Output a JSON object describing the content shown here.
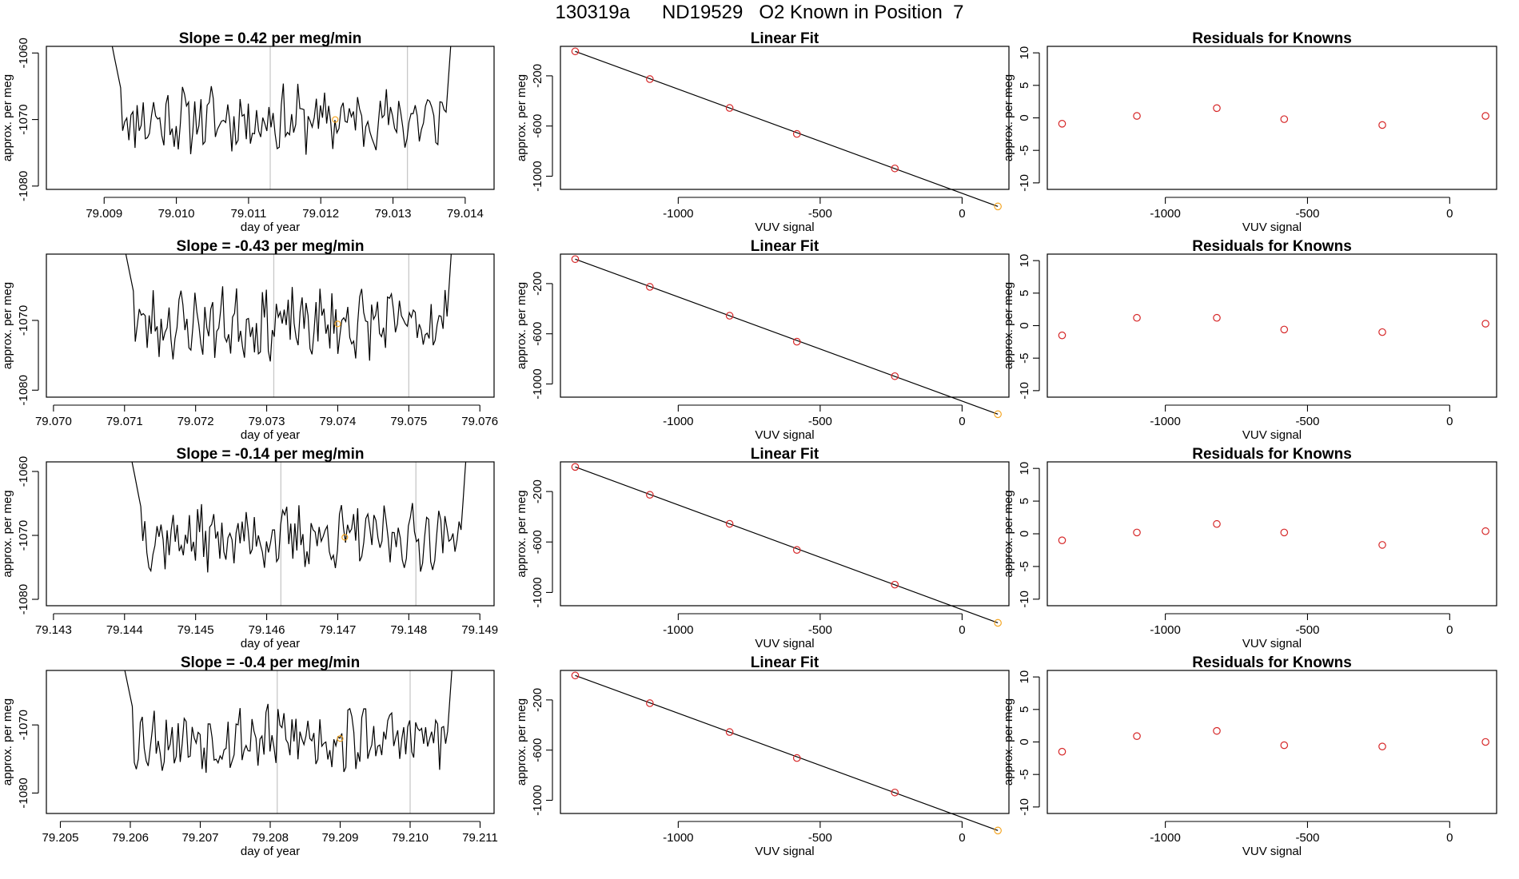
{
  "page_title": "130319a      ND19529   O2 Known in Position  7",
  "colors": {
    "line": "#000000",
    "grid": "#c8c8c8",
    "residual": "#d62728",
    "known": "#f5a623",
    "fit": "#000000"
  },
  "chart_data": [
    {
      "row": 1,
      "type": "line",
      "title": "Slope =  0.42  per meg/min",
      "xlabel": "day of year",
      "ylabel": "approx. per meg",
      "xlim": [
        79.0082,
        79.0144
      ],
      "ylim": [
        -1080.5,
        -1059.0
      ],
      "xticks": [
        79.009,
        79.01,
        79.011,
        79.012,
        79.013,
        79.014
      ],
      "xtick_labels": [
        "79.009",
        "79.010",
        "79.011",
        "79.012",
        "79.013",
        "79.014"
      ],
      "yticks": [
        -1080,
        -1070,
        -1060
      ],
      "ytick_labels": [
        "-1080",
        "-1070",
        "-1060"
      ],
      "vlines": [
        79.0113,
        79.0132
      ],
      "x_start": 79.009,
      "x_end": 79.01385,
      "seed": 11,
      "known_point": {
        "x": 79.0122,
        "y": -1070
      }
    },
    {
      "row": 2,
      "type": "line",
      "title": "Slope =  -0.43  per meg/min",
      "xlabel": "day of year",
      "ylabel": "approx. per meg",
      "xlim": [
        79.0699,
        79.0762
      ],
      "ylim": [
        -1081.0,
        -1060.5
      ],
      "xticks": [
        79.07,
        79.071,
        79.072,
        79.073,
        79.074,
        79.075,
        79.076
      ],
      "xtick_labels": [
        "79.070",
        "79.071",
        "79.072",
        "79.073",
        "79.074",
        "79.075",
        "79.076"
      ],
      "yticks": [
        -1080,
        -1070
      ],
      "ytick_labels": [
        "-1080",
        "-1070"
      ],
      "vlines": [
        79.0731,
        79.075
      ],
      "x_start": 79.0709,
      "x_end": 79.07565,
      "seed": 23,
      "known_point": {
        "x": 79.074,
        "y": -1070.5
      }
    },
    {
      "row": 3,
      "type": "line",
      "title": "Slope =  -0.14  per meg/min",
      "xlabel": "day of year",
      "ylabel": "approx. per meg",
      "xlim": [
        79.1429,
        79.1492
      ],
      "ylim": [
        -1081.0,
        -1058.5
      ],
      "xticks": [
        79.143,
        79.144,
        79.145,
        79.146,
        79.147,
        79.148,
        79.149
      ],
      "xtick_labels": [
        "79.143",
        "79.144",
        "79.145",
        "79.146",
        "79.147",
        "79.148",
        "79.149"
      ],
      "yticks": [
        -1080,
        -1070,
        -1060
      ],
      "ytick_labels": [
        "-1080",
        "-1070",
        "-1060"
      ],
      "vlines": [
        79.1462,
        79.1481
      ],
      "x_start": 79.144,
      "x_end": 79.14885,
      "seed": 37,
      "known_point": {
        "x": 79.1471,
        "y": -1070.3
      }
    },
    {
      "row": 4,
      "type": "line",
      "title": "Slope =  -0.4  per meg/min",
      "xlabel": "day of year",
      "ylabel": "approx. per meg",
      "xlim": [
        79.2048,
        79.2112
      ],
      "ylim": [
        -1083.0,
        -1062.0
      ],
      "xticks": [
        79.205,
        79.206,
        79.207,
        79.208,
        79.209,
        79.21,
        79.211
      ],
      "xtick_labels": [
        "79.205",
        "79.206",
        "79.207",
        "79.208",
        "79.209",
        "79.210",
        "79.211"
      ],
      "yticks": [
        -1080,
        -1070
      ],
      "ytick_labels": [
        "-1080",
        "-1070"
      ],
      "vlines": [
        79.2081,
        79.21
      ],
      "x_start": 79.2058,
      "x_end": 79.21065,
      "seed": 53,
      "known_point": {
        "x": 79.209,
        "y": -1072
      }
    },
    {
      "row": 1,
      "type": "scatter",
      "title": "Linear Fit",
      "xlabel": "VUV signal",
      "ylabel": "approx. per meg",
      "xlim": [
        -1415,
        165
      ],
      "ylim": [
        -1105,
        35
      ],
      "xticks": [
        -1000,
        -500,
        0
      ],
      "xtick_labels": [
        "-1000",
        "-500",
        "0"
      ],
      "yticks": [
        -1000,
        -600,
        -200
      ],
      "ytick_labels": [
        "-1000",
        "-600",
        "-200"
      ],
      "x": [
        -1363,
        -1100,
        -819,
        -582,
        -237,
        126
      ],
      "y": [
        -5,
        -226,
        -456,
        -663,
        -938,
        -1241
      ],
      "fit_line": [
        [
          -1363,
          -5
        ],
        [
          126,
          -1241
        ]
      ]
    },
    {
      "row": 2,
      "type": "scatter",
      "title": "Linear Fit",
      "xlabel": "VUV signal",
      "ylabel": "approx. per meg",
      "xlim": [
        -1415,
        165
      ],
      "ylim": [
        -1105,
        35
      ],
      "xticks": [
        -1000,
        -500,
        0
      ],
      "xtick_labels": [
        "-1000",
        "-500",
        "0"
      ],
      "yticks": [
        -1000,
        -600,
        -200
      ],
      "ytick_labels": [
        "-1000",
        "-600",
        "-200"
      ],
      "x": [
        -1363,
        -1100,
        -819,
        -582,
        -237,
        126
      ],
      "y": [
        -5,
        -226,
        -456,
        -663,
        -938,
        -1241
      ],
      "fit_line": [
        [
          -1363,
          -5
        ],
        [
          126,
          -1241
        ]
      ]
    },
    {
      "row": 3,
      "type": "scatter",
      "title": "Linear Fit",
      "xlabel": "VUV signal",
      "ylabel": "approx. per meg",
      "xlim": [
        -1415,
        165
      ],
      "ylim": [
        -1105,
        35
      ],
      "xticks": [
        -1000,
        -500,
        0
      ],
      "xtick_labels": [
        "-1000",
        "-500",
        "0"
      ],
      "yticks": [
        -1000,
        -600,
        -200
      ],
      "ytick_labels": [
        "-1000",
        "-600",
        "-200"
      ],
      "x": [
        -1363,
        -1100,
        -819,
        -582,
        -237,
        126
      ],
      "y": [
        -5,
        -226,
        -456,
        -663,
        -938,
        -1241
      ],
      "fit_line": [
        [
          -1363,
          -5
        ],
        [
          126,
          -1241
        ]
      ]
    },
    {
      "row": 4,
      "type": "scatter",
      "title": "Linear Fit",
      "xlabel": "VUV signal",
      "ylabel": "approx. per meg",
      "xlim": [
        -1415,
        165
      ],
      "ylim": [
        -1105,
        35
      ],
      "xticks": [
        -1000,
        -500,
        0
      ],
      "xtick_labels": [
        "-1000",
        "-500",
        "0"
      ],
      "yticks": [
        -1000,
        -600,
        -200
      ],
      "ytick_labels": [
        "-1000",
        "-600",
        "-200"
      ],
      "x": [
        -1363,
        -1100,
        -819,
        -582,
        -237,
        126
      ],
      "y": [
        -5,
        -226,
        -456,
        -663,
        -938,
        -1241
      ],
      "fit_line": [
        [
          -1363,
          -5
        ],
        [
          126,
          -1241
        ]
      ]
    },
    {
      "row": 1,
      "type": "scatter",
      "title": "Residuals for Knowns",
      "xlabel": "VUV signal",
      "ylabel": "approx. per meg",
      "xlim": [
        -1415,
        165
      ],
      "ylim": [
        -11,
        11
      ],
      "xticks": [
        -1000,
        -500,
        0
      ],
      "xtick_labels": [
        "-1000",
        "-500",
        "0"
      ],
      "yticks": [
        -10,
        -5,
        0,
        5,
        10
      ],
      "ytick_labels": [
        "-10",
        "-5",
        "0",
        "5",
        "10"
      ],
      "x": [
        -1363,
        -1100,
        -819,
        -582,
        -237,
        126
      ],
      "y": [
        -0.9,
        0.3,
        1.5,
        -0.2,
        -1.1,
        0.3
      ]
    },
    {
      "row": 2,
      "type": "scatter",
      "title": "Residuals for Knowns",
      "xlabel": "VUV signal",
      "ylabel": "approx. per meg",
      "xlim": [
        -1415,
        165
      ],
      "ylim": [
        -11,
        11
      ],
      "xticks": [
        -1000,
        -500,
        0
      ],
      "xtick_labels": [
        "-1000",
        "-500",
        "0"
      ],
      "yticks": [
        -10,
        -5,
        0,
        5,
        10
      ],
      "ytick_labels": [
        "-10",
        "-5",
        "0",
        "5",
        "10"
      ],
      "x": [
        -1363,
        -1100,
        -819,
        -582,
        -237,
        126
      ],
      "y": [
        -1.5,
        1.2,
        1.2,
        -0.6,
        -1.0,
        0.3
      ]
    },
    {
      "row": 3,
      "type": "scatter",
      "title": "Residuals for Knowns",
      "xlabel": "VUV signal",
      "ylabel": "approx. per meg",
      "xlim": [
        -1415,
        165
      ],
      "ylim": [
        -11,
        11
      ],
      "xticks": [
        -1000,
        -500,
        0
      ],
      "xtick_labels": [
        "-1000",
        "-500",
        "0"
      ],
      "yticks": [
        -10,
        -5,
        0,
        5,
        10
      ],
      "ytick_labels": [
        "-10",
        "-5",
        "0",
        "5",
        "10"
      ],
      "x": [
        -1363,
        -1100,
        -819,
        -582,
        -237,
        126
      ],
      "y": [
        -1.0,
        0.2,
        1.5,
        0.2,
        -1.7,
        0.4
      ]
    },
    {
      "row": 4,
      "type": "scatter",
      "title": "Residuals for Knowns",
      "xlabel": "VUV signal",
      "ylabel": "approx. per meg",
      "xlim": [
        -1415,
        165
      ],
      "ylim": [
        -11,
        11
      ],
      "xticks": [
        -1000,
        -500,
        0
      ],
      "xtick_labels": [
        "-1000",
        "-500",
        "0"
      ],
      "yticks": [
        -10,
        -5,
        0,
        5,
        10
      ],
      "ytick_labels": [
        "-10",
        "-5",
        "0",
        "5",
        "10"
      ],
      "x": [
        -1363,
        -1100,
        -819,
        -582,
        -237,
        126
      ],
      "y": [
        -1.5,
        0.9,
        1.7,
        -0.5,
        -0.7,
        0.0
      ]
    }
  ]
}
